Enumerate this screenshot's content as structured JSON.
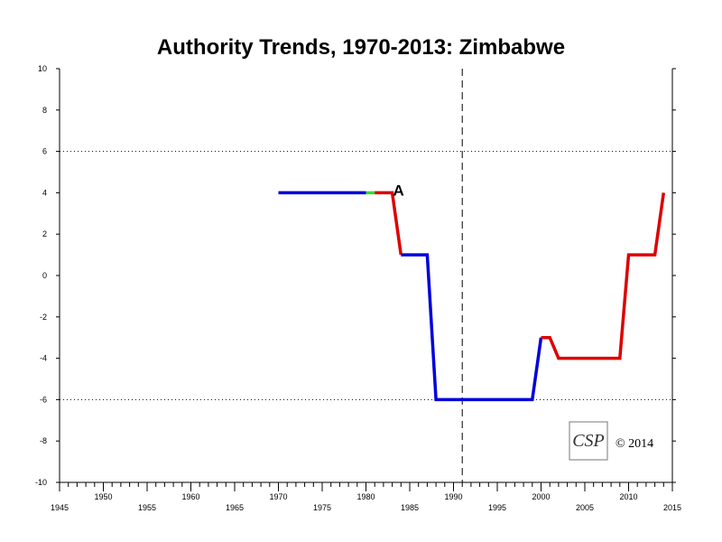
{
  "chart_data": {
    "type": "line",
    "title": "Authority Trends, 1970-2013: Zimbabwe",
    "xlabel": "",
    "ylabel": "",
    "xlim": [
      1945,
      2015
    ],
    "ylim": [
      -10,
      10
    ],
    "x_ticks_top": [
      1950,
      1960,
      1970,
      1980,
      1990,
      2000,
      2010
    ],
    "x_ticks_bottom": [
      1945,
      1955,
      1965,
      1975,
      1985,
      1995,
      2005,
      2015
    ],
    "y_ticks": [
      10,
      8,
      6,
      4,
      2,
      0,
      -2,
      -4,
      -6,
      -8,
      -10
    ],
    "reference_lines": [
      6,
      -6
    ],
    "vertical_reference_line": 1991,
    "grid": false,
    "series": [
      {
        "color": "#0000dd",
        "points": [
          [
            1970,
            4
          ],
          [
            1980,
            4
          ]
        ]
      },
      {
        "color": "#33dd33",
        "points": [
          [
            1980,
            4
          ],
          [
            1981,
            4
          ]
        ]
      },
      {
        "color": "#dd0000",
        "points": [
          [
            1981,
            4
          ],
          [
            1983,
            4
          ],
          [
            1984,
            1
          ]
        ]
      },
      {
        "color": "#0000dd",
        "points": [
          [
            1984,
            1
          ],
          [
            1987,
            1
          ],
          [
            1988,
            -6
          ],
          [
            1999,
            -6
          ],
          [
            2000,
            -3
          ]
        ]
      },
      {
        "color": "#dd0000",
        "points": [
          [
            2000,
            -3
          ],
          [
            2001,
            -3
          ],
          [
            2002,
            -4
          ],
          [
            2009,
            -4
          ],
          [
            2010,
            1
          ],
          [
            2013,
            1
          ],
          [
            2014,
            4
          ]
        ]
      }
    ],
    "annotations": [
      {
        "text": "A",
        "x": 1983,
        "y": 4
      }
    ]
  },
  "copyright": "© 2014",
  "logo_text": "CSP"
}
